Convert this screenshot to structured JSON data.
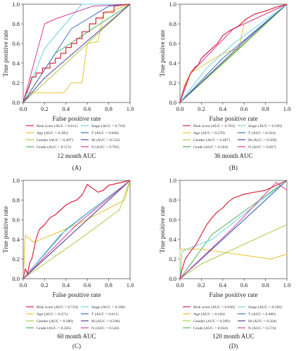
{
  "colors": {
    "Risk score": "#d7263d",
    "Age": "#e8c22a",
    "Gender": "#a6cf45",
    "Grade": "#4db05a",
    "Stage": "#6fd3e0",
    "T": "#3b72c4",
    "M": "#5a3f9e",
    "N": "#d8399a",
    "diag": "#444444"
  },
  "chart_data": [
    {
      "type": "line",
      "panel": "(A)",
      "title": "12 month AUC",
      "xlabel": "False positive rate",
      "ylabel": "True positive rate",
      "xlim": [
        0,
        1
      ],
      "ylim": [
        0,
        1
      ],
      "ticks": [
        "0.0",
        "0.2",
        "0.4",
        "0.6",
        "0.8",
        "1.0"
      ],
      "tick_values": [
        0,
        0.2,
        0.4,
        0.6,
        0.8,
        1.0
      ],
      "legend": [
        "Risk score (AUC = 0.611)",
        "Stage (AUC = 0.718)",
        "Age (AUC = 0.385)",
        "T (AUC = 0.668)",
        "Gender (AUC = 0.497)",
        "M (AUC = 0.533)",
        "Grade (AUC = 0.571)",
        "N (AUC = 0.785)"
      ],
      "series": [
        {
          "name": "Age",
          "points": [
            [
              0,
              0
            ],
            [
              0.03,
              0.1
            ],
            [
              0.38,
              0.1
            ],
            [
              0.45,
              0.2
            ],
            [
              0.55,
              0.2
            ],
            [
              0.6,
              0.6
            ],
            [
              0.7,
              0.62
            ],
            [
              0.75,
              0.9
            ],
            [
              1,
              1
            ]
          ]
        },
        {
          "name": "Gender",
          "points": [
            [
              0,
              0
            ],
            [
              0.5,
              0.5
            ],
            [
              1,
              1
            ]
          ]
        },
        {
          "name": "Grade",
          "points": [
            [
              0,
              0
            ],
            [
              0.3,
              0.5
            ],
            [
              1,
              1
            ]
          ]
        },
        {
          "name": "M",
          "points": [
            [
              0,
              0
            ],
            [
              0.2,
              0.25
            ],
            [
              1,
              1
            ]
          ]
        },
        {
          "name": "T",
          "points": [
            [
              0,
              0
            ],
            [
              0.45,
              0.75
            ],
            [
              0.8,
              0.98
            ],
            [
              1,
              1
            ]
          ]
        },
        {
          "name": "Stage",
          "points": [
            [
              0,
              0
            ],
            [
              0.2,
              0.55
            ],
            [
              0.55,
              1
            ],
            [
              1,
              1
            ]
          ]
        },
        {
          "name": "N",
          "points": [
            [
              0,
              0
            ],
            [
              0.2,
              0.8
            ],
            [
              0.3,
              0.85
            ],
            [
              0.65,
              0.98
            ],
            [
              1,
              1
            ]
          ]
        },
        {
          "name": "Risk score",
          "points": [
            [
              0,
              0
            ],
            [
              0.02,
              0.08
            ],
            [
              0.04,
              0.12
            ],
            [
              0.06,
              0.18
            ],
            [
              0.08,
              0.26
            ],
            [
              0.12,
              0.26
            ],
            [
              0.12,
              0.3
            ],
            [
              0.18,
              0.3
            ],
            [
              0.18,
              0.35
            ],
            [
              0.25,
              0.35
            ],
            [
              0.25,
              0.4
            ],
            [
              0.3,
              0.4
            ],
            [
              0.3,
              0.45
            ],
            [
              0.35,
              0.45
            ],
            [
              0.35,
              0.5
            ],
            [
              0.4,
              0.5
            ],
            [
              0.4,
              0.56
            ],
            [
              0.45,
              0.56
            ],
            [
              0.45,
              0.6
            ],
            [
              0.5,
              0.6
            ],
            [
              0.5,
              0.65
            ],
            [
              0.55,
              0.65
            ],
            [
              0.55,
              0.72
            ],
            [
              0.62,
              0.72
            ],
            [
              0.62,
              0.8
            ],
            [
              0.68,
              0.8
            ],
            [
              0.68,
              0.86
            ],
            [
              0.75,
              0.86
            ],
            [
              0.75,
              0.92
            ],
            [
              0.85,
              0.92
            ],
            [
              0.85,
              0.98
            ],
            [
              1,
              1
            ]
          ]
        }
      ]
    },
    {
      "type": "line",
      "panel": "(B)",
      "title": "36 month AUC",
      "xlabel": "False positive rate",
      "ylabel": "True positive rate",
      "xlim": [
        0,
        1
      ],
      "ylim": [
        0,
        1
      ],
      "ticks": [
        "0.0",
        "0.2",
        "0.4",
        "0.6",
        "0.8",
        "1.0"
      ],
      "tick_values": [
        0,
        0.2,
        0.4,
        0.6,
        0.8,
        1.0
      ],
      "legend": [
        "Risk score (AUC = 0.703)",
        "Stage (AUC = 0.599)",
        "Age (AUC = 0.578)",
        "T (AUC = 0.564)",
        "Gender (AUC = 0.487)",
        "M (AUC = 0.509)",
        "Grade (AUC = 0.504)",
        "N (AUC = 0.667)"
      ],
      "series": [
        {
          "name": "Age",
          "points": [
            [
              0,
              0
            ],
            [
              0.05,
              0.2
            ],
            [
              0.1,
              0.3
            ],
            [
              0.4,
              0.5
            ],
            [
              0.55,
              0.55
            ],
            [
              0.6,
              0.8
            ],
            [
              1,
              1
            ]
          ]
        },
        {
          "name": "Gender",
          "points": [
            [
              0,
              0
            ],
            [
              0.5,
              0.49
            ],
            [
              1,
              1
            ]
          ]
        },
        {
          "name": "Grade",
          "points": [
            [
              0,
              0
            ],
            [
              0.5,
              0.5
            ],
            [
              1,
              1
            ]
          ]
        },
        {
          "name": "M",
          "points": [
            [
              0,
              0
            ],
            [
              0.6,
              0.62
            ],
            [
              1,
              1
            ]
          ]
        },
        {
          "name": "T",
          "points": [
            [
              0,
              0
            ],
            [
              0.4,
              0.45
            ],
            [
              1,
              1
            ]
          ]
        },
        {
          "name": "Stage",
          "points": [
            [
              0,
              0
            ],
            [
              0.25,
              0.35
            ],
            [
              0.5,
              0.6
            ],
            [
              1,
              1
            ]
          ]
        },
        {
          "name": "N",
          "points": [
            [
              0,
              0
            ],
            [
              0.1,
              0.3
            ],
            [
              0.5,
              0.75
            ],
            [
              1,
              1
            ]
          ]
        },
        {
          "name": "Risk score",
          "points": [
            [
              0,
              0
            ],
            [
              0.02,
              0.08
            ],
            [
              0.04,
              0.15
            ],
            [
              0.07,
              0.22
            ],
            [
              0.1,
              0.3
            ],
            [
              0.14,
              0.36
            ],
            [
              0.17,
              0.38
            ],
            [
              0.2,
              0.45
            ],
            [
              0.25,
              0.5
            ],
            [
              0.3,
              0.55
            ],
            [
              0.35,
              0.6
            ],
            [
              0.4,
              0.68
            ],
            [
              0.45,
              0.72
            ],
            [
              0.5,
              0.75
            ],
            [
              0.55,
              0.78
            ],
            [
              0.62,
              0.85
            ],
            [
              0.7,
              0.9
            ],
            [
              0.8,
              0.93
            ],
            [
              0.9,
              0.97
            ],
            [
              1,
              1
            ]
          ]
        }
      ]
    },
    {
      "type": "line",
      "panel": "(C)",
      "title": "60 month AUC",
      "xlabel": "False positive rate",
      "ylabel": "True positive rate",
      "xlim": [
        0,
        1
      ],
      "ylim": [
        0,
        1
      ],
      "ticks": [
        "0.0",
        "0.2",
        "0.4",
        "0.6",
        "0.8",
        "1.0"
      ],
      "tick_values": [
        0,
        0.2,
        0.4,
        0.6,
        0.8,
        1.0
      ],
      "legend": [
        "Risk score (AUC = 0.724)",
        "Stage (AUC = 0.598)",
        "Age (AUC = 0.471)",
        "T (AUC = 0.611)",
        "Gender (AUC = 0.389)",
        "M (AUC = 0.506)",
        "Grade (AUC = 0.505)",
        "N (AUC = 0.544)"
      ],
      "series": [
        {
          "name": "Age",
          "points": [
            [
              0,
              0
            ],
            [
              0.02,
              0.44
            ],
            [
              0.1,
              0.37
            ],
            [
              0.5,
              0.55
            ],
            [
              0.95,
              0.8
            ],
            [
              1,
              1
            ]
          ]
        },
        {
          "name": "Gender",
          "points": [
            [
              0,
              0
            ],
            [
              0.5,
              0.38
            ],
            [
              0.9,
              0.7
            ],
            [
              1,
              1
            ]
          ]
        },
        {
          "name": "Grade",
          "points": [
            [
              0,
              0
            ],
            [
              0.5,
              0.5
            ],
            [
              1,
              1
            ]
          ]
        },
        {
          "name": "M",
          "points": [
            [
              0,
              0
            ],
            [
              0.3,
              0.3
            ],
            [
              1,
              1
            ]
          ]
        },
        {
          "name": "T",
          "points": [
            [
              0,
              0
            ],
            [
              0.4,
              0.5
            ],
            [
              1,
              1
            ]
          ]
        },
        {
          "name": "Stage",
          "points": [
            [
              0,
              0
            ],
            [
              0.35,
              0.45
            ],
            [
              1,
              1
            ]
          ]
        },
        {
          "name": "N",
          "points": [
            [
              0,
              0
            ],
            [
              0.5,
              0.55
            ],
            [
              1,
              1
            ]
          ]
        },
        {
          "name": "Risk score",
          "points": [
            [
              0,
              0
            ],
            [
              0.02,
              0.1
            ],
            [
              0.04,
              0.05
            ],
            [
              0.06,
              0.16
            ],
            [
              0.08,
              0.2
            ],
            [
              0.12,
              0.4
            ],
            [
              0.15,
              0.5
            ],
            [
              0.2,
              0.55
            ],
            [
              0.25,
              0.62
            ],
            [
              0.3,
              0.65
            ],
            [
              0.35,
              0.7
            ],
            [
              0.4,
              0.75
            ],
            [
              0.45,
              0.78
            ],
            [
              0.5,
              0.8
            ],
            [
              0.55,
              0.85
            ],
            [
              0.6,
              0.96
            ],
            [
              0.65,
              0.92
            ],
            [
              0.7,
              0.88
            ],
            [
              0.75,
              0.9
            ],
            [
              0.8,
              0.95
            ],
            [
              1,
              1
            ]
          ]
        }
      ]
    },
    {
      "type": "line",
      "panel": "(D)",
      "title": "120 month AUC",
      "xlabel": "False positive rate",
      "ylabel": "True positive rate",
      "xlim": [
        0,
        1
      ],
      "ylim": [
        0,
        1
      ],
      "ticks": [
        "0.0",
        "0.2",
        "0.4",
        "0.6",
        "0.8",
        "1.0"
      ],
      "tick_values": [
        0,
        0.2,
        0.4,
        0.6,
        0.8,
        1.0
      ],
      "legend": [
        "Risk score (AUC = 0.630)",
        "Stage (AUC = 0.566)",
        "Age (AUC = 0.184)",
        "T (AUC = 0.480)",
        "Gender (AUC = 0.389)",
        "M (AUC = 0.504)",
        "Grade (AUC = 0.650)",
        "N (AUC = 0.574)"
      ],
      "series": [
        {
          "name": "Age",
          "points": [
            [
              0,
              0
            ],
            [
              0,
              0.3
            ],
            [
              0.2,
              0.3
            ],
            [
              0.85,
              0.2
            ],
            [
              1,
              0.25
            ]
          ]
        },
        {
          "name": "Gender",
          "points": [
            [
              0,
              0
            ],
            [
              0.2,
              0.15
            ],
            [
              1,
              0.55
            ]
          ]
        },
        {
          "name": "Grade",
          "points": [
            [
              0,
              0
            ],
            [
              0.3,
              0.45
            ],
            [
              1,
              1
            ]
          ]
        },
        {
          "name": "M",
          "points": [
            [
              0,
              0
            ],
            [
              0.5,
              0.5
            ],
            [
              1,
              1
            ]
          ]
        },
        {
          "name": "T",
          "points": [
            [
              0,
              0
            ],
            [
              0.3,
              0.3
            ],
            [
              1,
              1
            ]
          ]
        },
        {
          "name": "Stage",
          "points": [
            [
              0,
              0
            ],
            [
              0.02,
              0.28
            ],
            [
              0.3,
              0.4
            ],
            [
              1,
              1
            ]
          ]
        },
        {
          "name": "N",
          "points": [
            [
              0,
              0
            ],
            [
              0.5,
              0.52
            ],
            [
              0.9,
              0.98
            ],
            [
              1,
              0.9
            ]
          ]
        },
        {
          "name": "Risk score",
          "points": [
            [
              0,
              0
            ],
            [
              0.02,
              0.1
            ],
            [
              0.05,
              0.2
            ],
            [
              0.1,
              0.28
            ],
            [
              0.15,
              0.35
            ],
            [
              0.2,
              0.45
            ],
            [
              0.25,
              0.55
            ],
            [
              0.3,
              0.62
            ],
            [
              0.35,
              0.68
            ],
            [
              0.4,
              0.72
            ],
            [
              0.45,
              0.78
            ],
            [
              0.5,
              0.82
            ],
            [
              0.6,
              0.86
            ],
            [
              0.7,
              0.88
            ],
            [
              0.8,
              0.9
            ],
            [
              0.9,
              0.95
            ],
            [
              1,
              1
            ]
          ]
        }
      ]
    }
  ]
}
